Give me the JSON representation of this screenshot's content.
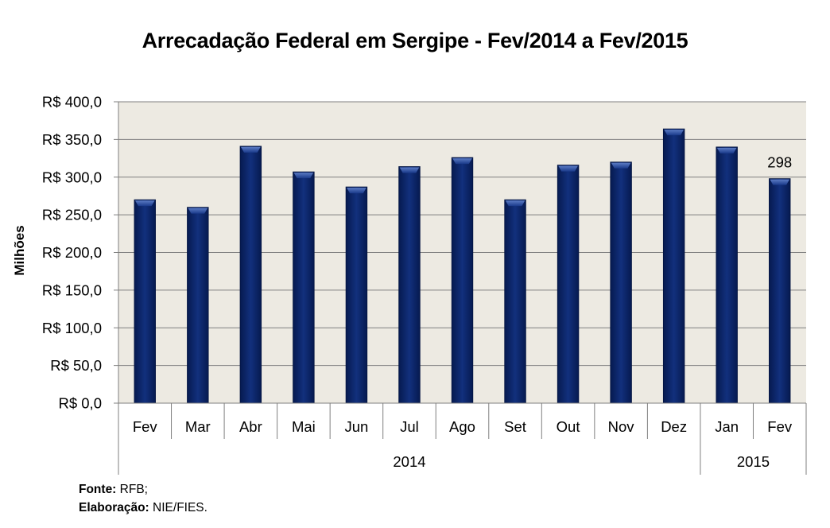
{
  "chart_data": {
    "type": "bar",
    "title": "Arrecadação Federal em Sergipe - Fev/2014 a Fev/2015",
    "xlabel": "",
    "ylabel": "Milhões",
    "ylim": [
      0,
      400
    ],
    "yticks": [
      0,
      50,
      100,
      150,
      200,
      250,
      300,
      350,
      400
    ],
    "ytick_labels": [
      "R$ 0,0",
      "R$ 50,0",
      "R$ 100,0",
      "R$ 150,0",
      "R$ 200,0",
      "R$ 250,0",
      "R$ 300,0",
      "R$ 350,0",
      "R$ 400,0"
    ],
    "categories": [
      "Fev",
      "Mar",
      "Abr",
      "Mai",
      "Jun",
      "Jul",
      "Ago",
      "Set",
      "Out",
      "Nov",
      "Dez",
      "Jan",
      "Fev"
    ],
    "groups": [
      {
        "label": "2014",
        "count": 11
      },
      {
        "label": "2015",
        "count": 2
      }
    ],
    "values": [
      270,
      260,
      341,
      307,
      287,
      314,
      326,
      270,
      316,
      320,
      364,
      340,
      298
    ],
    "data_labels": [
      {
        "index": 12,
        "text": "298"
      }
    ],
    "grid": true,
    "legend": "none",
    "colors": {
      "bar": "#0b2466",
      "bar_highlight": "#3a5aa8",
      "plot_bg": "#edeae2",
      "grid": "#7f7f7f"
    }
  },
  "footer": {
    "source_label": "Fonte:",
    "source_value": "RFB;",
    "author_label": "Elaboração:",
    "author_value": "NIE/FIES."
  }
}
